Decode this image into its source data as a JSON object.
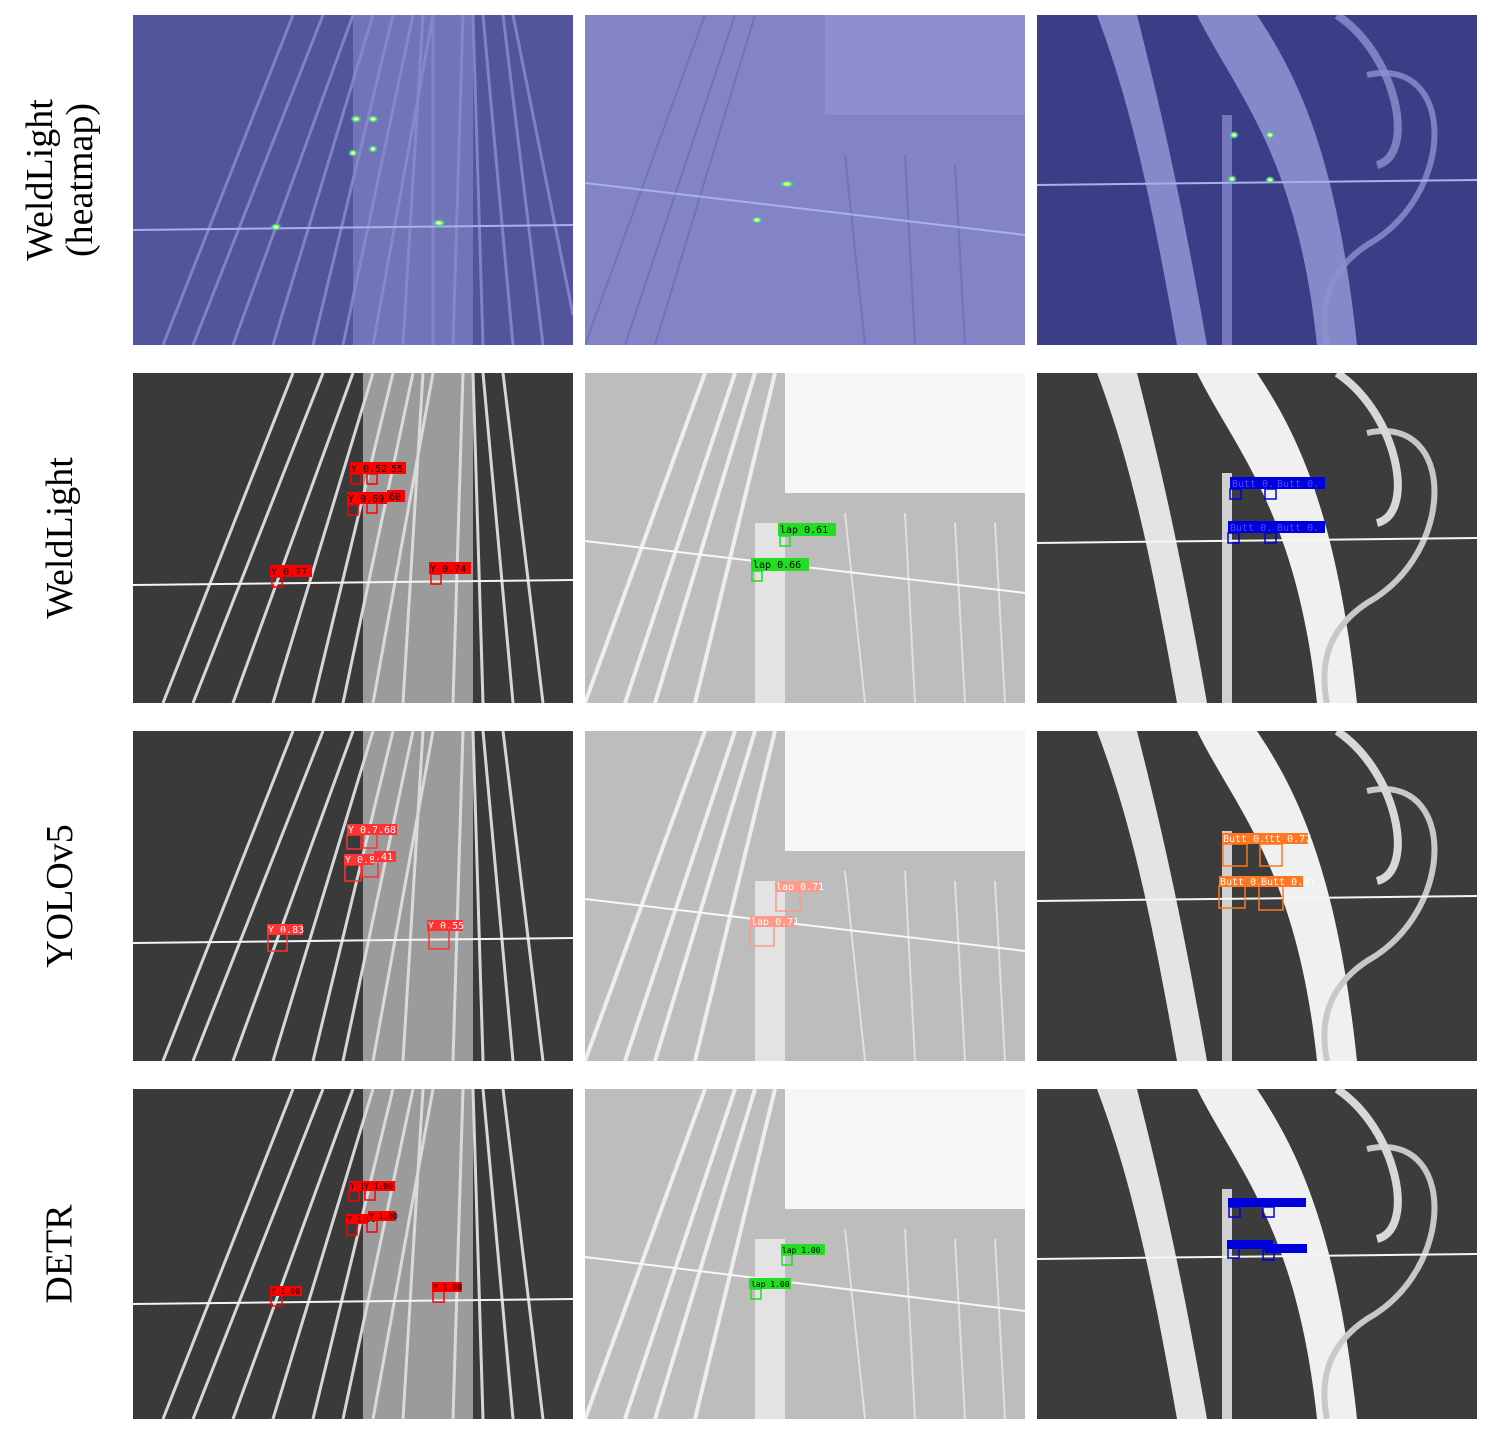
{
  "rows": [
    {
      "id": "heatmap",
      "label_lines": [
        "WeldLight",
        "(heatmap)"
      ]
    },
    {
      "id": "weldlight",
      "label_lines": [
        "WeldLight"
      ]
    },
    {
      "id": "yolov5",
      "label_lines": [
        "YOLOv5"
      ]
    },
    {
      "id": "detr",
      "label_lines": [
        "DETR"
      ]
    }
  ],
  "colors": {
    "heatmap_bg": "#7e80c2",
    "heatmap_dark": "#3b3d87",
    "y_class": "#ff0000",
    "lap_class": "#22dd22",
    "butt_class": "#0000dd",
    "yolo_y": "#ff3333",
    "yolo_lap": "#ff9a8a",
    "yolo_butt": "#ff7722"
  },
  "detections": {
    "weldlight": {
      "col1": [
        "Y 0.52",
        "55",
        "Y 0.69",
        "60",
        "Y 0.77",
        "Y 0.74"
      ],
      "col2": [
        "lap 0.61",
        "lap 0.66"
      ],
      "col3": [
        "Butt 0.",
        "Butt 0.",
        "Butt 0.",
        "Butt 0."
      ]
    },
    "yolov5": {
      "col1": [
        "Y 0.74",
        ".68",
        "Y 0.80",
        ".41",
        "Y 0.83",
        "Y 0.55"
      ],
      "col2": [
        "lap 0.71",
        "lap 0.71"
      ],
      "col3": [
        "Butt 0.91",
        "tt 0.77",
        "Butt 0.87",
        "Butt 0.81"
      ]
    },
    "detr": {
      "col1": [
        "Y 1.00",
        "Y 1.00",
        "Y 1.00",
        "Y 1.00",
        "Y 1.00",
        "Y 1.00"
      ],
      "col2": [
        "lap 1.00",
        "lap 1.00"
      ],
      "col3": []
    }
  }
}
